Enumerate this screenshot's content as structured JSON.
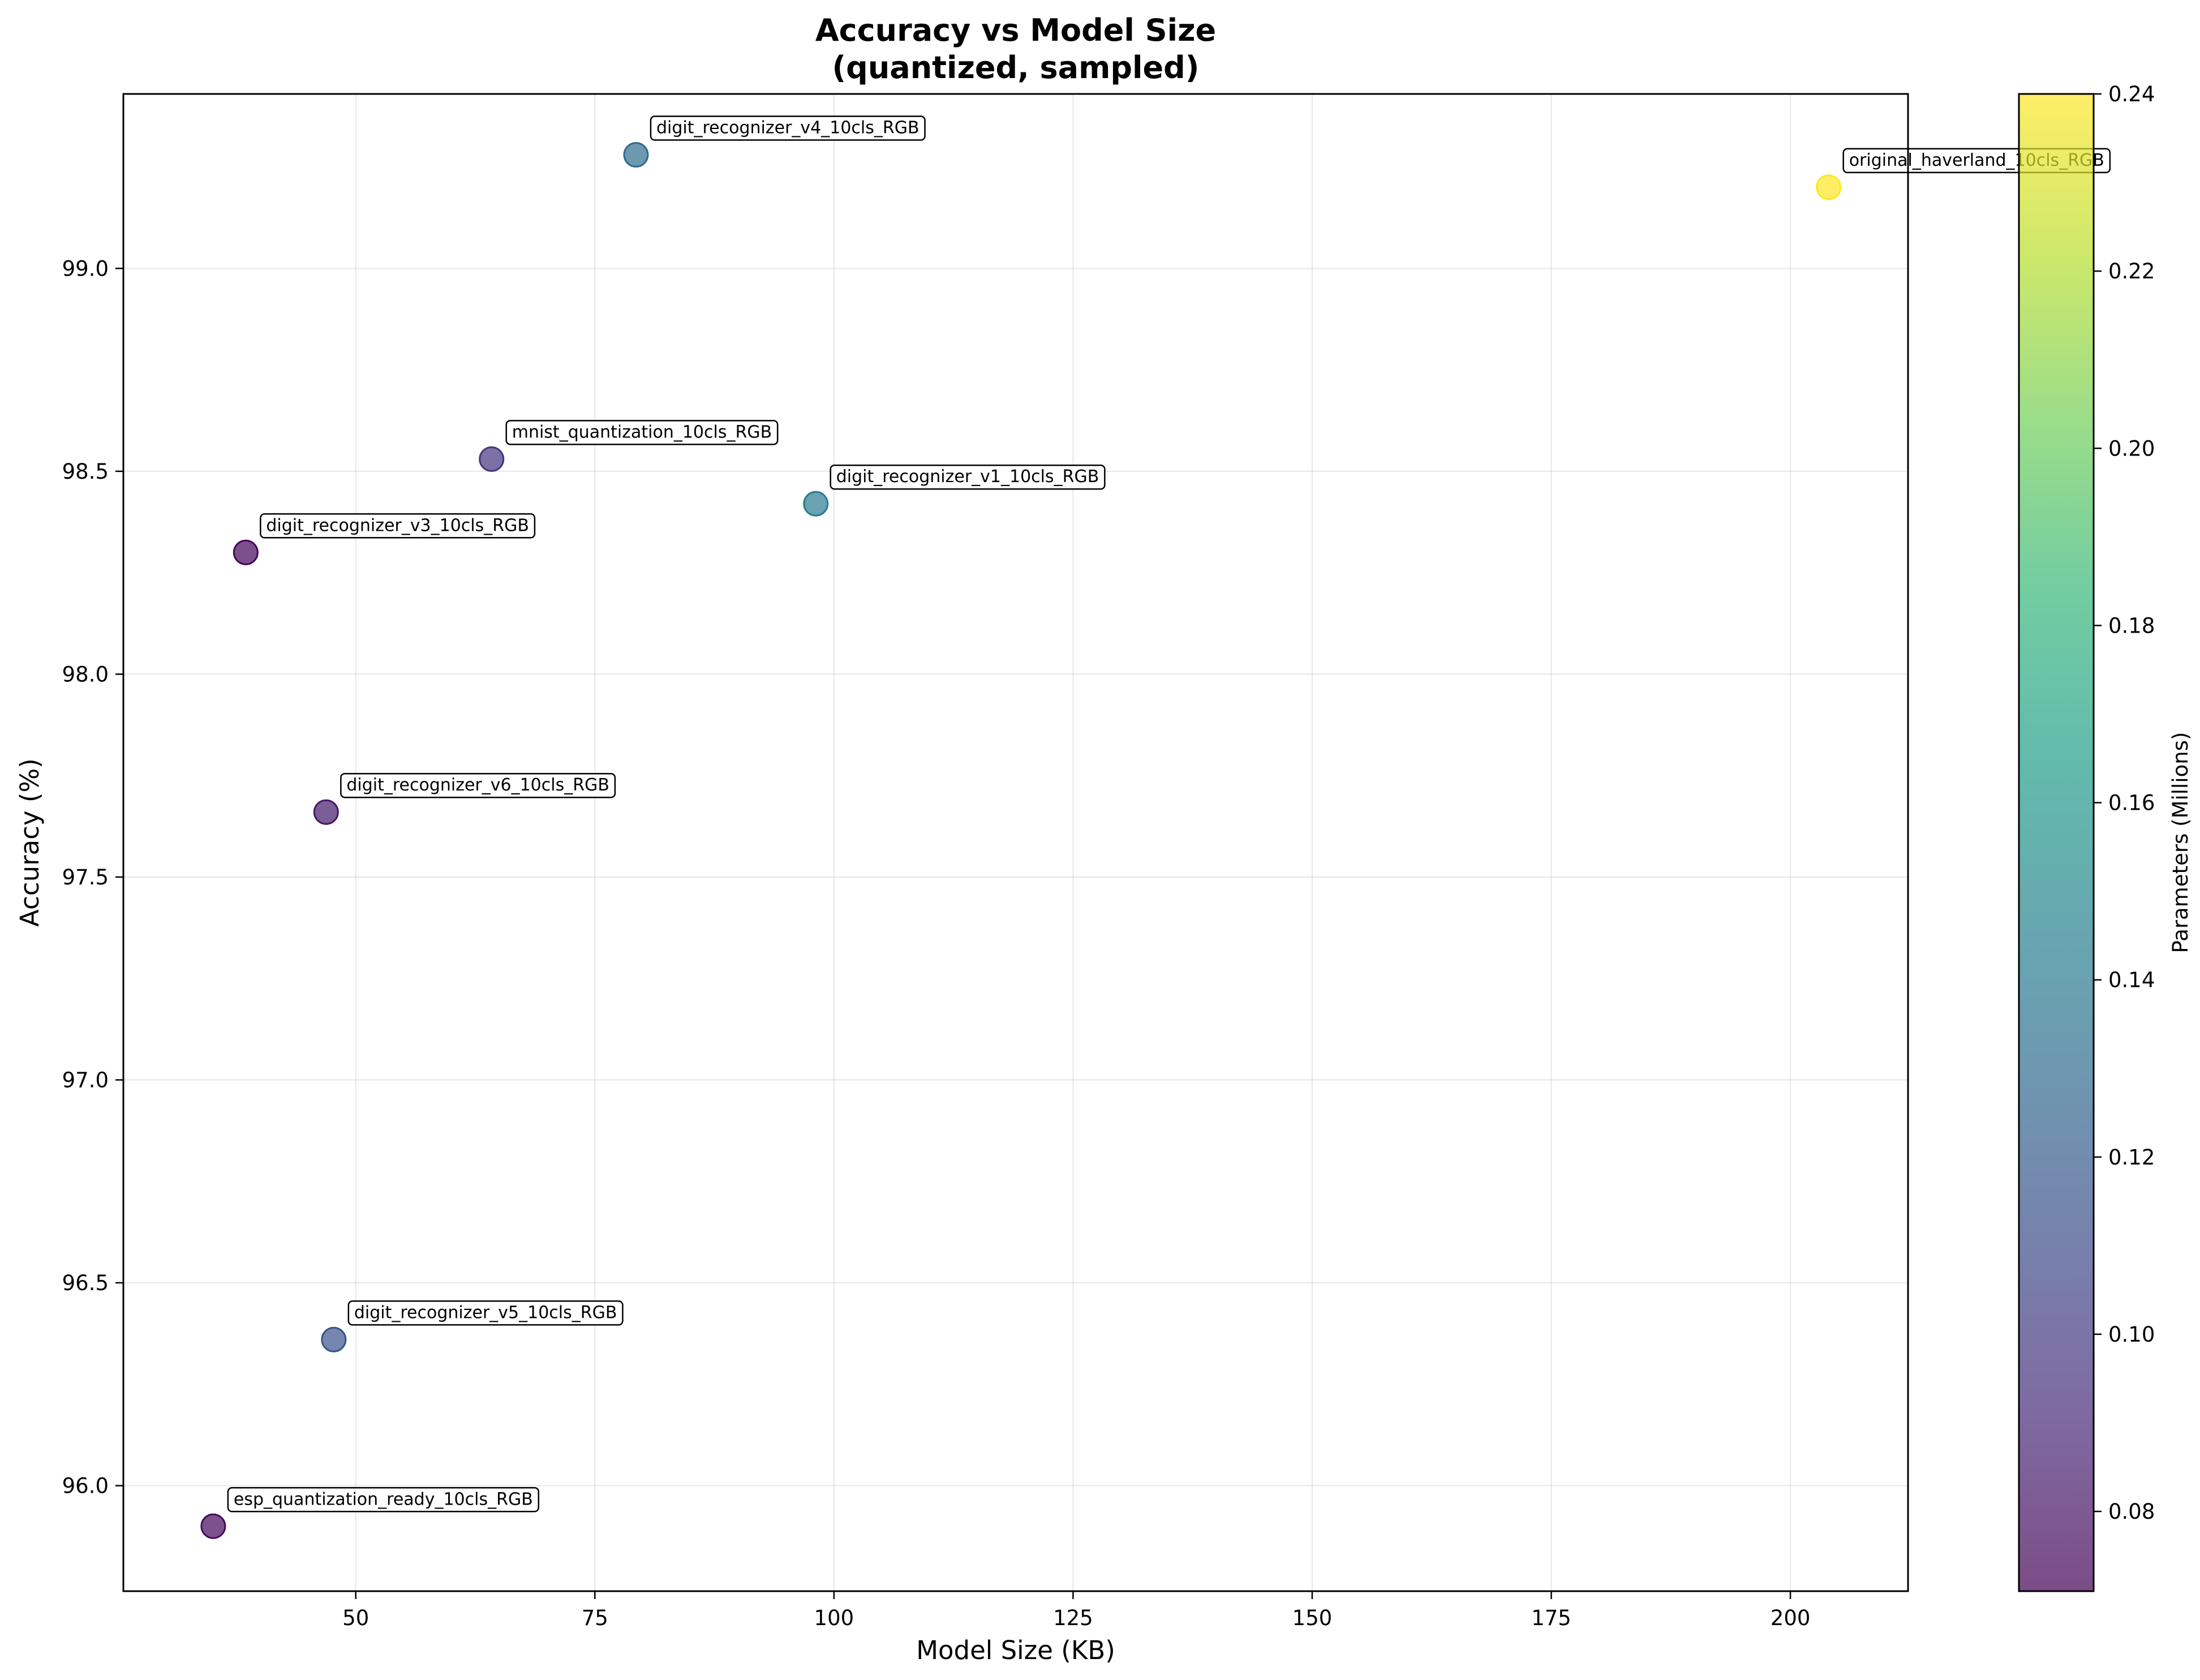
{
  "chart_data": {
    "type": "scatter",
    "title": [
      "Accuracy vs Model Size",
      "(quantized, sampled)"
    ],
    "xlabel": "Model Size (KB)",
    "ylabel": "Accuracy (%)",
    "xlim": [
      25.7,
      212.3
    ],
    "ylim": [
      95.74,
      99.43
    ],
    "xticks": [
      50,
      75,
      100,
      125,
      150,
      175,
      200
    ],
    "yticks": [
      96.0,
      96.5,
      97.0,
      97.5,
      98.0,
      98.5,
      99.0
    ],
    "grid": true,
    "colorbar": {
      "label": "Parameters (Millions)",
      "range": [
        0.071,
        0.24
      ],
      "ticks": [
        0.08,
        0.1,
        0.12,
        0.14,
        0.16,
        0.18,
        0.2,
        0.22,
        0.24
      ],
      "colormap": "viridis"
    },
    "points": [
      {
        "label": "digit_recognizer_v4_10cls_RGB",
        "x": 79.3,
        "y": 99.28,
        "params": 0.13
      },
      {
        "label": "original_haverland_10cls_RGB",
        "x": 204.0,
        "y": 99.2,
        "params": 0.24
      },
      {
        "label": "mnist_quantization_10cls_RGB",
        "x": 64.2,
        "y": 98.53,
        "params": 0.097
      },
      {
        "label": "digit_recognizer_v1_10cls_RGB",
        "x": 98.1,
        "y": 98.42,
        "params": 0.14
      },
      {
        "label": "digit_recognizer_v3_10cls_RGB",
        "x": 38.5,
        "y": 98.3,
        "params": 0.073
      },
      {
        "label": "digit_recognizer_v6_10cls_RGB",
        "x": 46.9,
        "y": 97.66,
        "params": 0.082
      },
      {
        "label": "digit_recognizer_v5_10cls_RGB",
        "x": 47.7,
        "y": 96.36,
        "params": 0.115
      },
      {
        "label": "esp_quantization_ready_10cls_RGB",
        "x": 35.1,
        "y": 95.9,
        "params": 0.075
      }
    ]
  }
}
